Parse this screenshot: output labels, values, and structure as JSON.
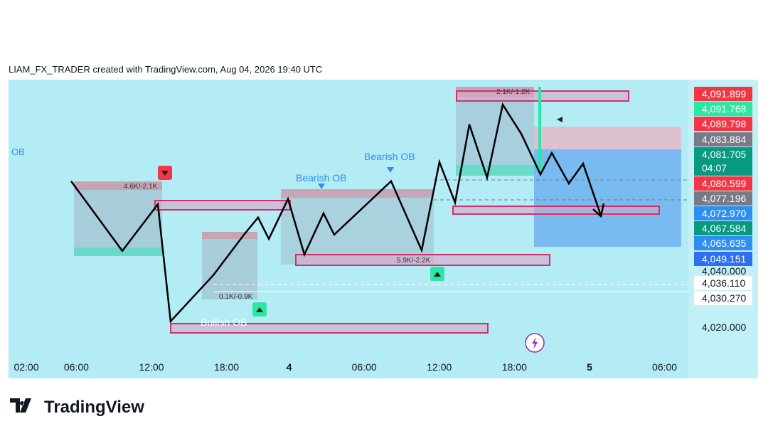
{
  "header": "LIAM_FX_TRADER created with TradingView.com, Aug 04, 2026 19:40 UTC",
  "footer": "TradingView",
  "chart_data": {
    "type": "line",
    "color": "#000000",
    "x": [
      5.58,
      9.67,
      12.51,
      13.53,
      16.94,
      19.39,
      20.52,
      21.38,
      22.91,
      24.22,
      25.75,
      26.6,
      31.15,
      33.59,
      35.01,
      36.26,
      37.4,
      38.82,
      40.07,
      41.55,
      43.08,
      43.99,
      45.35,
      46.49,
      47.91
    ],
    "values": [
      4065.0,
      4043.5,
      4057.9,
      4021.8,
      4036.0,
      4048.5,
      4053.8,
      4047.2,
      4059.5,
      4042.4,
      4055.1,
      4048.5,
      4065.0,
      4043.7,
      4070.9,
      4058.4,
      4082.5,
      4066.1,
      4088.6,
      4079.6,
      4067.1,
      4073.7,
      4064.3,
      4070.4,
      4054.4
    ],
    "xlim": [
      0.58,
      54.9
    ],
    "xticks": [
      {
        "value": 2,
        "label": "02:00"
      },
      {
        "value": 6,
        "label": "06:00"
      },
      {
        "value": 12,
        "label": "12:00"
      },
      {
        "value": 18,
        "label": "18:00"
      },
      {
        "value": 23,
        "label": "4"
      },
      {
        "value": 29,
        "label": "06:00"
      },
      {
        "value": 35,
        "label": "12:00"
      },
      {
        "value": 41,
        "label": "18:00"
      },
      {
        "value": 47,
        "label": "5"
      },
      {
        "value": 53,
        "label": "06:00"
      }
    ],
    "ylim": [
      4004.2,
      4096.3
    ],
    "price_labels": [
      {
        "value": 4091.899,
        "label": "4,091.899",
        "color": "#f23645"
      },
      {
        "value": 4091.768,
        "label": "4,091.768",
        "color": "#2ee6a3"
      },
      {
        "value": 4089.798,
        "label": "4,089.798",
        "color": "#f23645"
      },
      {
        "value": 4083.884,
        "label": "4,083.884",
        "color": "#787b86"
      },
      {
        "value": 4081.705,
        "label": "4,081.705",
        "color": "#089981"
      },
      {
        "value": 4080.599,
        "label": "4,080.599",
        "color": "#f23645"
      },
      {
        "value": 4077.196,
        "label": "4,077.196",
        "color": "#787b86"
      },
      {
        "value": 4072.97,
        "label": "4,072.970",
        "color": "#2f8ff0"
      },
      {
        "value": 4067.584,
        "label": "4,067.584",
        "color": "#089981"
      },
      {
        "value": 4065.635,
        "label": "4,065.635",
        "color": "#2f8ff0"
      },
      {
        "value": 4049.151,
        "label": "4,049.151",
        "color": "#2f6ff0"
      },
      {
        "value": 4040,
        "label": "4,040.000",
        "color": null
      },
      {
        "value": 4036.11,
        "label": "4,036.110",
        "color": "#ffffff"
      },
      {
        "value": 4030.27,
        "label": "4,030.270",
        "color": "#ffffff"
      },
      {
        "value": 4020,
        "label": "4,020.000",
        "color": null
      }
    ],
    "countdown": "04:07",
    "annotations": [
      "OB",
      "Bearish OB",
      "Bearish OB",
      "Bullish OB",
      "4.6K/-2.1K",
      "5.9K/-2.2K",
      "0.1K/-0.9K",
      "2.1K/-1.2K"
    ]
  }
}
